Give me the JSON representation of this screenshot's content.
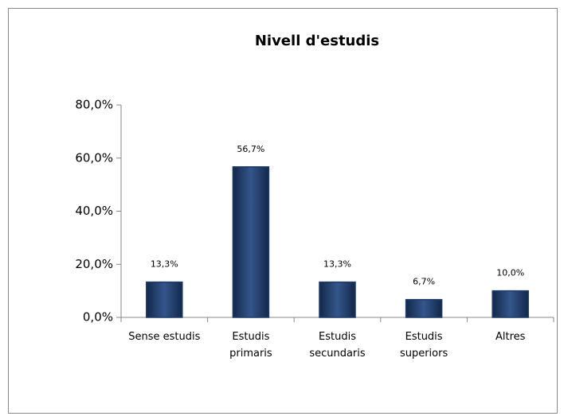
{
  "chart_data": {
    "type": "bar",
    "title": "Nivell d'estudis",
    "categories": [
      [
        "Sense estudis"
      ],
      [
        "Estudis",
        "primaris"
      ],
      [
        "Estudis",
        "secundaris"
      ],
      [
        "Estudis",
        "superiors"
      ],
      [
        "Altres"
      ]
    ],
    "values": [
      13.3,
      56.7,
      13.3,
      6.7,
      10.0
    ],
    "value_labels": [
      "13,3%",
      "56,7%",
      "13,3%",
      "6,7%",
      "10,0%"
    ],
    "color": "#1f3a66",
    "ylim": [
      0,
      80
    ],
    "yticks": [
      {
        "value": 0,
        "label": "0,0%"
      },
      {
        "value": 20,
        "label": "20,0%"
      },
      {
        "value": 40,
        "label": "40,0%"
      },
      {
        "value": 60,
        "label": "60,0%"
      },
      {
        "value": 80,
        "label": "80,0%"
      }
    ],
    "grid": false
  }
}
